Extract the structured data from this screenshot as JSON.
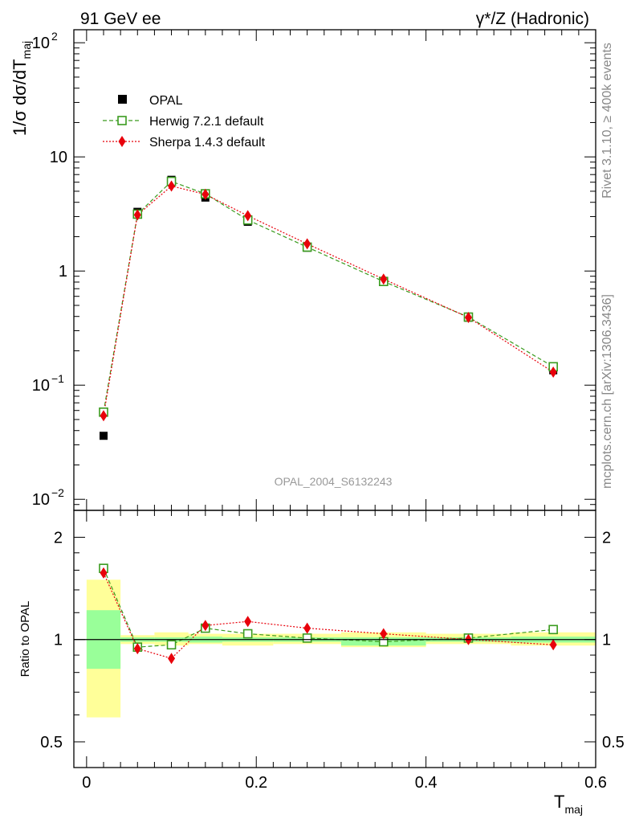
{
  "header": {
    "left": "91 GeV ee",
    "right": "γ*/Z (Hadronic)"
  },
  "side_labels": {
    "rivet": "Rivet 3.1.10, ≥ 400k events",
    "mcplots": "mcplots.cern.ch [arXiv:1306.3436]"
  },
  "analysis_id": "OPAL_2004_S6132243",
  "chart_data": [
    {
      "type": "scatter",
      "panel": "main",
      "ylabel": "1/σ dσ/dT_maj",
      "yscale": "log",
      "ylim": [
        0.008,
        130
      ],
      "xlim": [
        -0.015,
        0.6
      ],
      "y_ticks": [
        {
          "value": 0.01,
          "label": "10",
          "exp": "−2"
        },
        {
          "value": 0.1,
          "label": "10",
          "exp": "−1"
        },
        {
          "value": 1,
          "label": "1",
          "exp": ""
        },
        {
          "value": 10,
          "label": "10",
          "exp": ""
        },
        {
          "value": 100,
          "label": "10",
          "exp": "2"
        }
      ],
      "legend_position": "top-left",
      "series": [
        {
          "name": "OPAL",
          "style": "data",
          "color": "#000000",
          "x": [
            0.02,
            0.06,
            0.1,
            0.14,
            0.19,
            0.26,
            0.35,
            0.45,
            0.55
          ],
          "xerr": [
            0.02,
            0.02,
            0.02,
            0.02,
            0.03,
            0.04,
            0.05,
            0.05,
            0.05
          ],
          "y": [
            0.036,
            3.3,
            6.3,
            4.4,
            2.7,
            1.6,
            0.82,
            0.39,
            0.135
          ]
        },
        {
          "name": "Herwig 7.2.1 default",
          "style": "open-square-dashed",
          "color": "#3a9b1e",
          "x": [
            0.02,
            0.06,
            0.1,
            0.14,
            0.19,
            0.26,
            0.35,
            0.45,
            0.55
          ],
          "y": [
            0.058,
            3.15,
            6.1,
            4.75,
            2.8,
            1.62,
            0.81,
            0.395,
            0.145
          ]
        },
        {
          "name": "Sherpa 1.4.3 default",
          "style": "diamond-dotted",
          "color": "#e8000b",
          "x": [
            0.02,
            0.06,
            0.1,
            0.14,
            0.19,
            0.26,
            0.35,
            0.45,
            0.55
          ],
          "y": [
            0.054,
            3.1,
            5.55,
            4.7,
            3.05,
            1.73,
            0.85,
            0.392,
            0.13
          ]
        }
      ]
    },
    {
      "type": "scatter",
      "panel": "ratio",
      "ylabel": "Ratio to OPAL",
      "xlabel": "T_maj",
      "yscale": "log",
      "ylim": [
        0.42,
        2.4
      ],
      "xlim": [
        -0.015,
        0.6
      ],
      "y_ticks": [
        0.5,
        1,
        2
      ],
      "x_ticks": [
        0,
        0.2,
        0.4,
        0.6
      ],
      "bands": {
        "bins": [
          [
            0.0,
            0.04
          ],
          [
            0.04,
            0.08
          ],
          [
            0.08,
            0.12
          ],
          [
            0.12,
            0.16
          ],
          [
            0.16,
            0.22
          ],
          [
            0.22,
            0.3
          ],
          [
            0.3,
            0.4
          ],
          [
            0.4,
            0.5
          ],
          [
            0.5,
            0.6
          ]
        ],
        "inner": [
          [
            0.82,
            1.22
          ],
          [
            0.985,
            1.015
          ],
          [
            0.985,
            1.015
          ],
          [
            0.98,
            1.02
          ],
          [
            0.985,
            1.015
          ],
          [
            0.985,
            1.015
          ],
          [
            0.96,
            1.015
          ],
          [
            0.985,
            1.015
          ],
          [
            0.98,
            1.02
          ]
        ],
        "outer": [
          [
            0.59,
            1.5
          ],
          [
            0.97,
            1.03
          ],
          [
            0.96,
            1.05
          ],
          [
            0.97,
            1.04
          ],
          [
            0.96,
            1.04
          ],
          [
            0.97,
            1.04
          ],
          [
            0.95,
            1.05
          ],
          [
            0.97,
            1.04
          ],
          [
            0.96,
            1.05
          ]
        ],
        "inner_color": "#99ff99",
        "outer_color": "#ffff99"
      },
      "series": [
        {
          "name": "Herwig 7.2.1 default",
          "color": "#3a9b1e",
          "x": [
            0.02,
            0.06,
            0.1,
            0.14,
            0.19,
            0.26,
            0.35,
            0.45,
            0.55
          ],
          "y": [
            1.62,
            0.95,
            0.965,
            1.08,
            1.04,
            1.01,
            0.985,
            1.01,
            1.07
          ]
        },
        {
          "name": "Sherpa 1.4.3 default",
          "color": "#e8000b",
          "x": [
            0.02,
            0.06,
            0.1,
            0.14,
            0.19,
            0.26,
            0.35,
            0.45,
            0.55
          ],
          "y": [
            1.57,
            0.94,
            0.88,
            1.1,
            1.13,
            1.08,
            1.04,
            1.0,
            0.965
          ]
        }
      ]
    }
  ]
}
